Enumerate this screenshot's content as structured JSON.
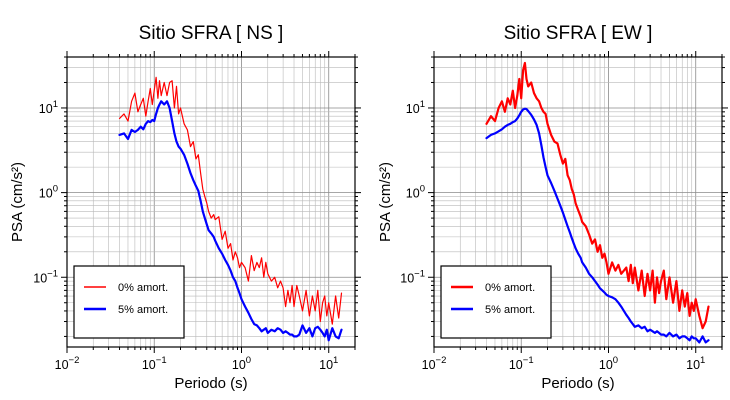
{
  "chart_data": [
    {
      "type": "line",
      "title": "Sitio SFRA [ NS ]",
      "xlabel": "Periodo (s)",
      "ylabel": "PSA (cm/s²)",
      "x_scale": "log",
      "y_scale": "log",
      "xlim": [
        0.01,
        20
      ],
      "ylim": [
        0.015,
        40
      ],
      "x_ticks": [
        {
          "value": 0.01,
          "base": "10",
          "exp": "−2"
        },
        {
          "value": 0.1,
          "base": "10",
          "exp": "−1"
        },
        {
          "value": 1,
          "base": "10",
          "exp": "0"
        },
        {
          "value": 10,
          "base": "10",
          "exp": "1"
        }
      ],
      "y_ticks": [
        {
          "value": 0.1,
          "base": "10",
          "exp": "−1"
        },
        {
          "value": 1,
          "base": "10",
          "exp": "0"
        },
        {
          "value": 10,
          "base": "10",
          "exp": "1"
        }
      ],
      "grid": true,
      "legend_position": "bottom-left",
      "series": [
        {
          "name": "0% amort.",
          "color": "#ff0000",
          "linewidth": 1.2,
          "x": [
            0.04,
            0.045,
            0.05,
            0.055,
            0.06,
            0.065,
            0.07,
            0.075,
            0.08,
            0.085,
            0.09,
            0.095,
            0.1,
            0.105,
            0.11,
            0.115,
            0.12,
            0.13,
            0.14,
            0.15,
            0.16,
            0.17,
            0.18,
            0.19,
            0.2,
            0.22,
            0.24,
            0.26,
            0.28,
            0.3,
            0.32,
            0.34,
            0.36,
            0.38,
            0.4,
            0.42,
            0.45,
            0.48,
            0.5,
            0.55,
            0.6,
            0.65,
            0.7,
            0.75,
            0.8,
            0.85,
            0.9,
            0.95,
            1.0,
            1.1,
            1.2,
            1.3,
            1.4,
            1.5,
            1.6,
            1.7,
            1.8,
            1.9,
            2.0,
            2.2,
            2.4,
            2.6,
            2.8,
            3.0,
            3.2,
            3.4,
            3.6,
            3.8,
            4.0,
            4.3,
            4.6,
            5.0,
            5.5,
            6.0,
            6.5,
            7.0,
            7.5,
            8.0,
            8.5,
            9.0,
            9.5,
            10,
            11,
            12,
            13,
            14
          ],
          "y": [
            7.5,
            8.5,
            7,
            12,
            15,
            9,
            11,
            13,
            8,
            12,
            17,
            11,
            16,
            23,
            13,
            21,
            14,
            20,
            14,
            20,
            21,
            10,
            18,
            8.5,
            10,
            6.5,
            5.5,
            3.5,
            4,
            2.5,
            2.8,
            1.7,
            1.1,
            0.9,
            0.75,
            0.6,
            0.5,
            0.55,
            0.48,
            0.52,
            0.28,
            0.35,
            0.22,
            0.25,
            0.16,
            0.2,
            0.17,
            0.13,
            0.15,
            0.13,
            0.09,
            0.18,
            0.12,
            0.15,
            0.13,
            0.17,
            0.1,
            0.15,
            0.11,
            0.09,
            0.1,
            0.075,
            0.09,
            0.075,
            0.045,
            0.07,
            0.05,
            0.08,
            0.045,
            0.08,
            0.06,
            0.04,
            0.07,
            0.035,
            0.06,
            0.04,
            0.07,
            0.03,
            0.05,
            0.06,
            0.035,
            0.05,
            0.028,
            0.06,
            0.033,
            0.065
          ]
        },
        {
          "name": "5% amort.",
          "color": "#0000ff",
          "linewidth": 2.2,
          "x": [
            0.04,
            0.045,
            0.05,
            0.055,
            0.06,
            0.065,
            0.07,
            0.075,
            0.08,
            0.085,
            0.09,
            0.095,
            0.1,
            0.105,
            0.11,
            0.115,
            0.12,
            0.13,
            0.14,
            0.15,
            0.16,
            0.17,
            0.18,
            0.19,
            0.2,
            0.22,
            0.24,
            0.26,
            0.28,
            0.3,
            0.32,
            0.34,
            0.36,
            0.38,
            0.4,
            0.42,
            0.45,
            0.48,
            0.5,
            0.55,
            0.6,
            0.65,
            0.7,
            0.75,
            0.8,
            0.85,
            0.9,
            0.95,
            1.0,
            1.1,
            1.2,
            1.3,
            1.4,
            1.5,
            1.6,
            1.7,
            1.8,
            1.9,
            2.0,
            2.2,
            2.4,
            2.6,
            2.8,
            3.0,
            3.2,
            3.4,
            3.6,
            3.8,
            4.0,
            4.3,
            4.6,
            5.0,
            5.5,
            6.0,
            6.5,
            7.0,
            7.5,
            8.0,
            8.5,
            9.0,
            9.5,
            10,
            11,
            12,
            13,
            14
          ],
          "y": [
            4.8,
            5.0,
            4.3,
            5.5,
            5.2,
            5.5,
            6.0,
            5.6,
            6.5,
            7.0,
            6.8,
            7.2,
            7.0,
            8.5,
            10,
            11,
            12,
            11,
            12,
            10,
            7,
            5,
            4,
            3.5,
            3.3,
            2.8,
            2.2,
            1.7,
            1.4,
            1.2,
            1.05,
            0.8,
            0.6,
            0.5,
            0.42,
            0.36,
            0.33,
            0.3,
            0.27,
            0.22,
            0.19,
            0.16,
            0.14,
            0.12,
            0.1,
            0.09,
            0.075,
            0.065,
            0.055,
            0.045,
            0.038,
            0.032,
            0.028,
            0.027,
            0.025,
            0.023,
            0.024,
            0.025,
            0.022,
            0.024,
            0.023,
            0.025,
            0.024,
            0.022,
            0.023,
            0.022,
            0.021,
            0.021,
            0.02,
            0.02,
            0.021,
            0.027,
            0.022,
            0.025,
            0.02,
            0.025,
            0.026,
            0.024,
            0.022,
            0.02,
            0.024,
            0.018,
            0.025,
            0.02,
            0.019,
            0.024
          ]
        }
      ]
    },
    {
      "type": "line",
      "title": "Sitio SFRA [ EW ]",
      "xlabel": "Periodo (s)",
      "ylabel": "PSA (cm/s²)",
      "x_scale": "log",
      "y_scale": "log",
      "xlim": [
        0.01,
        20
      ],
      "ylim": [
        0.015,
        40
      ],
      "x_ticks": [
        {
          "value": 0.01,
          "base": "10",
          "exp": "−2"
        },
        {
          "value": 0.1,
          "base": "10",
          "exp": "−1"
        },
        {
          "value": 1,
          "base": "10",
          "exp": "0"
        },
        {
          "value": 10,
          "base": "10",
          "exp": "1"
        }
      ],
      "y_ticks": [
        {
          "value": 0.1,
          "base": "10",
          "exp": "−1"
        },
        {
          "value": 1,
          "base": "10",
          "exp": "0"
        },
        {
          "value": 10,
          "base": "10",
          "exp": "1"
        }
      ],
      "grid": true,
      "legend_position": "bottom-left",
      "series": [
        {
          "name": "0% amort.",
          "color": "#ff0000",
          "linewidth": 2.2,
          "x": [
            0.04,
            0.045,
            0.05,
            0.055,
            0.06,
            0.065,
            0.07,
            0.075,
            0.08,
            0.085,
            0.09,
            0.095,
            0.1,
            0.105,
            0.11,
            0.115,
            0.12,
            0.13,
            0.14,
            0.15,
            0.16,
            0.17,
            0.18,
            0.19,
            0.2,
            0.22,
            0.24,
            0.26,
            0.28,
            0.3,
            0.32,
            0.34,
            0.36,
            0.38,
            0.4,
            0.42,
            0.45,
            0.48,
            0.5,
            0.55,
            0.6,
            0.65,
            0.7,
            0.75,
            0.8,
            0.85,
            0.9,
            0.95,
            1.0,
            1.1,
            1.2,
            1.3,
            1.4,
            1.5,
            1.6,
            1.7,
            1.8,
            1.9,
            2.0,
            2.2,
            2.4,
            2.6,
            2.8,
            3.0,
            3.2,
            3.4,
            3.6,
            3.8,
            4.0,
            4.3,
            4.6,
            5.0,
            5.5,
            6.0,
            6.5,
            7.0,
            7.5,
            8.0,
            8.5,
            9.0,
            9.5,
            10,
            11,
            12,
            13,
            14
          ],
          "y": [
            6.5,
            8,
            7,
            10,
            12,
            9,
            13,
            11,
            16,
            10,
            14,
            22,
            13,
            28,
            34,
            22,
            18,
            20,
            15,
            13,
            12,
            10,
            9,
            8.5,
            6.5,
            4.8,
            4,
            3.8,
            2.8,
            2.2,
            2.5,
            1.6,
            1.4,
            1.1,
            0.95,
            0.75,
            0.62,
            0.52,
            0.45,
            0.4,
            0.32,
            0.25,
            0.28,
            0.2,
            0.24,
            0.17,
            0.19,
            0.15,
            0.11,
            0.15,
            0.12,
            0.14,
            0.11,
            0.12,
            0.13,
            0.09,
            0.14,
            0.085,
            0.13,
            0.07,
            0.12,
            0.06,
            0.11,
            0.07,
            0.12,
            0.05,
            0.1,
            0.065,
            0.09,
            0.12,
            0.055,
            0.1,
            0.05,
            0.09,
            0.04,
            0.07,
            0.045,
            0.065,
            0.035,
            0.05,
            0.04,
            0.055,
            0.035,
            0.025,
            0.03,
            0.045
          ]
        },
        {
          "name": "5% amort.",
          "color": "#0000ff",
          "linewidth": 2.2,
          "x": [
            0.04,
            0.045,
            0.05,
            0.055,
            0.06,
            0.065,
            0.07,
            0.075,
            0.08,
            0.085,
            0.09,
            0.095,
            0.1,
            0.105,
            0.11,
            0.115,
            0.12,
            0.13,
            0.14,
            0.15,
            0.16,
            0.17,
            0.18,
            0.19,
            0.2,
            0.22,
            0.24,
            0.26,
            0.28,
            0.3,
            0.32,
            0.34,
            0.36,
            0.38,
            0.4,
            0.42,
            0.45,
            0.48,
            0.5,
            0.55,
            0.6,
            0.65,
            0.7,
            0.75,
            0.8,
            0.85,
            0.9,
            0.95,
            1.0,
            1.1,
            1.2,
            1.3,
            1.4,
            1.5,
            1.6,
            1.7,
            1.8,
            1.9,
            2.0,
            2.2,
            2.4,
            2.6,
            2.8,
            3.0,
            3.2,
            3.4,
            3.6,
            3.8,
            4.0,
            4.3,
            4.6,
            5.0,
            5.5,
            6.0,
            6.5,
            7.0,
            7.5,
            8.0,
            8.5,
            9.0,
            9.5,
            10,
            11,
            12,
            13,
            14
          ],
          "y": [
            4.4,
            4.8,
            5.0,
            5.3,
            5.6,
            6.0,
            6.3,
            6.5,
            6.8,
            7.0,
            7.5,
            8.2,
            9.0,
            9.6,
            9.8,
            9.7,
            9.2,
            8.3,
            7.3,
            6.3,
            5.0,
            3.6,
            2.6,
            2.0,
            1.6,
            1.3,
            1.05,
            0.85,
            0.7,
            0.58,
            0.48,
            0.4,
            0.34,
            0.29,
            0.25,
            0.22,
            0.19,
            0.17,
            0.15,
            0.13,
            0.11,
            0.1,
            0.09,
            0.082,
            0.074,
            0.07,
            0.066,
            0.062,
            0.06,
            0.058,
            0.055,
            0.05,
            0.045,
            0.04,
            0.036,
            0.033,
            0.03,
            0.028,
            0.026,
            0.027,
            0.025,
            0.026,
            0.023,
            0.024,
            0.023,
            0.022,
            0.023,
            0.022,
            0.021,
            0.021,
            0.02,
            0.022,
            0.02,
            0.021,
            0.019,
            0.02,
            0.02,
            0.019,
            0.018,
            0.02,
            0.019,
            0.019,
            0.017,
            0.02,
            0.017,
            0.018
          ]
        }
      ]
    }
  ]
}
